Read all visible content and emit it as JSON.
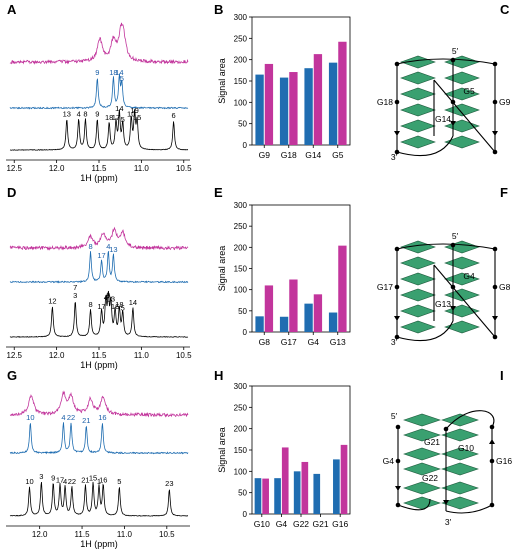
{
  "colors": {
    "blue": "#1f6db1",
    "magenta": "#c2359c",
    "green": "#3aa070",
    "black": "#000000"
  },
  "rows": [
    {
      "spectrum": {
        "label": "A",
        "xlabel": "1H (ppm)",
        "ticks": [
          "12.5",
          "12.0",
          "11.5",
          "11.0",
          "10.5"
        ],
        "tick_values": [
          12.5,
          12.0,
          11.5,
          11.0,
          10.5
        ],
        "xlim": [
          12.55,
          10.45
        ],
        "traces": {
          "magenta": [
            {
              "ppm": 11.49,
              "h": 1.0
            },
            {
              "ppm": 11.33,
              "h": 0.9
            },
            {
              "ppm": 11.24,
              "h": 1.1
            },
            {
              "ppm": 11.21,
              "h": 0.8
            }
          ],
          "blue": [
            {
              "ppm": 11.52,
              "h": 1.0,
              "label": "9"
            },
            {
              "ppm": 11.33,
              "h": 1.0,
              "label": "18"
            },
            {
              "ppm": 11.26,
              "h": 1.0,
              "label": "14"
            },
            {
              "ppm": 11.23,
              "h": 0.8,
              "label": "5"
            }
          ],
          "black": [
            {
              "ppm": 11.88,
              "h": 0.85,
              "label": "13"
            },
            {
              "ppm": 11.74,
              "h": 0.85,
              "label": "4"
            },
            {
              "ppm": 11.66,
              "h": 0.85,
              "label": "8"
            },
            {
              "ppm": 11.52,
              "h": 0.85,
              "label": "9"
            },
            {
              "ppm": 11.38,
              "h": 0.75,
              "label": "18"
            },
            {
              "ppm": 11.3,
              "h": 0.75,
              "label": "17"
            },
            {
              "ppm": 11.26,
              "h": 1.0,
              "label": "14"
            },
            {
              "ppm": 11.22,
              "h": 0.7,
              "label": "5"
            },
            {
              "ppm": 11.12,
              "h": 0.85,
              "label": "10"
            },
            {
              "ppm": 11.08,
              "h": 0.95,
              "label": "19"
            },
            {
              "ppm": 11.05,
              "h": 0.75,
              "label": "15"
            },
            {
              "ppm": 10.62,
              "h": 0.8,
              "label": "6"
            }
          ]
        }
      },
      "bars": {
        "label": "B",
        "ylabel": "Signal area",
        "ylim": [
          0,
          300
        ],
        "yticks": [
          "0",
          "50",
          "100",
          "150",
          "200",
          "250",
          "300"
        ],
        "categories": [
          "G9",
          "G18",
          "G14",
          "G5"
        ],
        "series": [
          {
            "values": [
              165,
              158,
              180,
              193
            ]
          },
          {
            "values": [
              190,
              171,
              213,
              242
            ]
          }
        ]
      },
      "topology": {
        "label": "C",
        "five_prime": "5′",
        "three_prime": "3′",
        "labels": [
          "G18",
          "G9",
          "G5",
          "G14"
        ]
      }
    },
    {
      "spectrum": {
        "label": "D",
        "xlabel": "1H (ppm)",
        "ticks": [
          "12.5",
          "12.0",
          "11.5",
          "11.0",
          "10.5"
        ],
        "tick_values": [
          12.5,
          12.0,
          11.5,
          11.0,
          10.5
        ],
        "xlim": [
          12.55,
          10.45
        ],
        "traces": {
          "magenta": [
            {
              "ppm": 11.6,
              "h": 0.5
            },
            {
              "ppm": 11.45,
              "h": 0.6
            },
            {
              "ppm": 11.32,
              "h": 0.75
            },
            {
              "ppm": 11.22,
              "h": 0.65
            }
          ],
          "blue": [
            {
              "ppm": 11.6,
              "h": 1.0,
              "label": "8"
            },
            {
              "ppm": 11.47,
              "h": 0.7,
              "label": "17"
            },
            {
              "ppm": 11.39,
              "h": 1.0,
              "label": "4"
            },
            {
              "ppm": 11.33,
              "h": 0.9,
              "label": "13"
            }
          ],
          "black": [
            {
              "ppm": 12.05,
              "h": 0.85,
              "label": "12"
            },
            {
              "ppm": 11.78,
              "h": 1.0,
              "label": "7\n3"
            },
            {
              "ppm": 11.6,
              "h": 0.75,
              "label": "8"
            },
            {
              "ppm": 11.47,
              "h": 0.7,
              "label": "17"
            },
            {
              "ppm": 11.42,
              "h": 0.95,
              "label": "4"
            },
            {
              "ppm": 11.39,
              "h": 1.0,
              "label": "9"
            },
            {
              "ppm": 11.36,
              "h": 0.9,
              "label": "13"
            },
            {
              "ppm": 11.31,
              "h": 0.7,
              "label": "16"
            },
            {
              "ppm": 11.26,
              "h": 0.75,
              "label": "18"
            },
            {
              "ppm": 11.22,
              "h": 0.65,
              "label": "5"
            },
            {
              "ppm": 11.1,
              "h": 0.8,
              "label": "14"
            }
          ]
        }
      },
      "bars": {
        "label": "E",
        "ylabel": "Signal area",
        "ylim": [
          0,
          300
        ],
        "yticks": [
          "0",
          "50",
          "100",
          "150",
          "200",
          "250",
          "300"
        ],
        "categories": [
          "G8",
          "G17",
          "G4",
          "G13"
        ],
        "series": [
          {
            "values": [
              37,
              36,
              67,
              46
            ]
          },
          {
            "values": [
              110,
              124,
              89,
              204
            ]
          }
        ]
      },
      "topology": {
        "label": "F",
        "five_prime": "5′",
        "three_prime": "3′",
        "labels": [
          "G17",
          "G8",
          "G4",
          "G13"
        ]
      }
    },
    {
      "spectrum": {
        "label": "G",
        "xlabel": "1H (ppm)",
        "ticks": [
          "12.0",
          "11.5",
          "11.0",
          "10.5"
        ],
        "tick_values": [
          12.0,
          11.5,
          11.0,
          10.5
        ],
        "xlim": [
          12.35,
          10.25
        ],
        "traces": {
          "magenta": [
            {
              "ppm": 12.1,
              "h": 0.9
            },
            {
              "ppm": 11.72,
              "h": 0.9
            },
            {
              "ppm": 11.63,
              "h": 0.8
            },
            {
              "ppm": 11.4,
              "h": 0.7
            },
            {
              "ppm": 11.25,
              "h": 0.8
            }
          ],
          "blue": [
            {
              "ppm": 12.11,
              "h": 1.0,
              "label": "10"
            },
            {
              "ppm": 11.72,
              "h": 1.0,
              "label": "4"
            },
            {
              "ppm": 11.63,
              "h": 1.0,
              "label": "22"
            },
            {
              "ppm": 11.45,
              "h": 0.9,
              "label": "21"
            },
            {
              "ppm": 11.26,
              "h": 1.0,
              "label": "16"
            }
          ],
          "black": [
            {
              "ppm": 12.12,
              "h": 0.8,
              "label": "10"
            },
            {
              "ppm": 11.98,
              "h": 0.95,
              "label": "3"
            },
            {
              "ppm": 11.84,
              "h": 0.9,
              "label": "9"
            },
            {
              "ppm": 11.76,
              "h": 0.85,
              "label": "17"
            },
            {
              "ppm": 11.7,
              "h": 0.8,
              "label": "4"
            },
            {
              "ppm": 11.62,
              "h": 0.8,
              "label": "22"
            },
            {
              "ppm": 11.46,
              "h": 0.85,
              "label": "21"
            },
            {
              "ppm": 11.37,
              "h": 0.9,
              "label": "15"
            },
            {
              "ppm": 11.3,
              "h": 0.8,
              "label": "1"
            },
            {
              "ppm": 11.25,
              "h": 0.85,
              "label": "16"
            },
            {
              "ppm": 11.06,
              "h": 0.8,
              "label": "5"
            },
            {
              "ppm": 10.47,
              "h": 0.75,
              "label": "23"
            }
          ]
        }
      },
      "bars": {
        "label": "H",
        "ylabel": "Signal area",
        "ylim": [
          0,
          300
        ],
        "yticks": [
          "0",
          "50",
          "100",
          "150",
          "200",
          "250",
          "300"
        ],
        "categories": [
          "G10",
          "G4",
          "G22",
          "G21",
          "G16"
        ],
        "series": [
          {
            "values": [
              84,
              84,
              100,
              94,
              128
            ]
          },
          {
            "values": [
              83,
              156,
              122,
              null,
              162
            ]
          }
        ]
      },
      "topology": {
        "label": "I",
        "five_prime": "5′",
        "three_prime": "3′",
        "labels": [
          "G21",
          "G10",
          "G4",
          "G16",
          "G22"
        ]
      }
    }
  ]
}
